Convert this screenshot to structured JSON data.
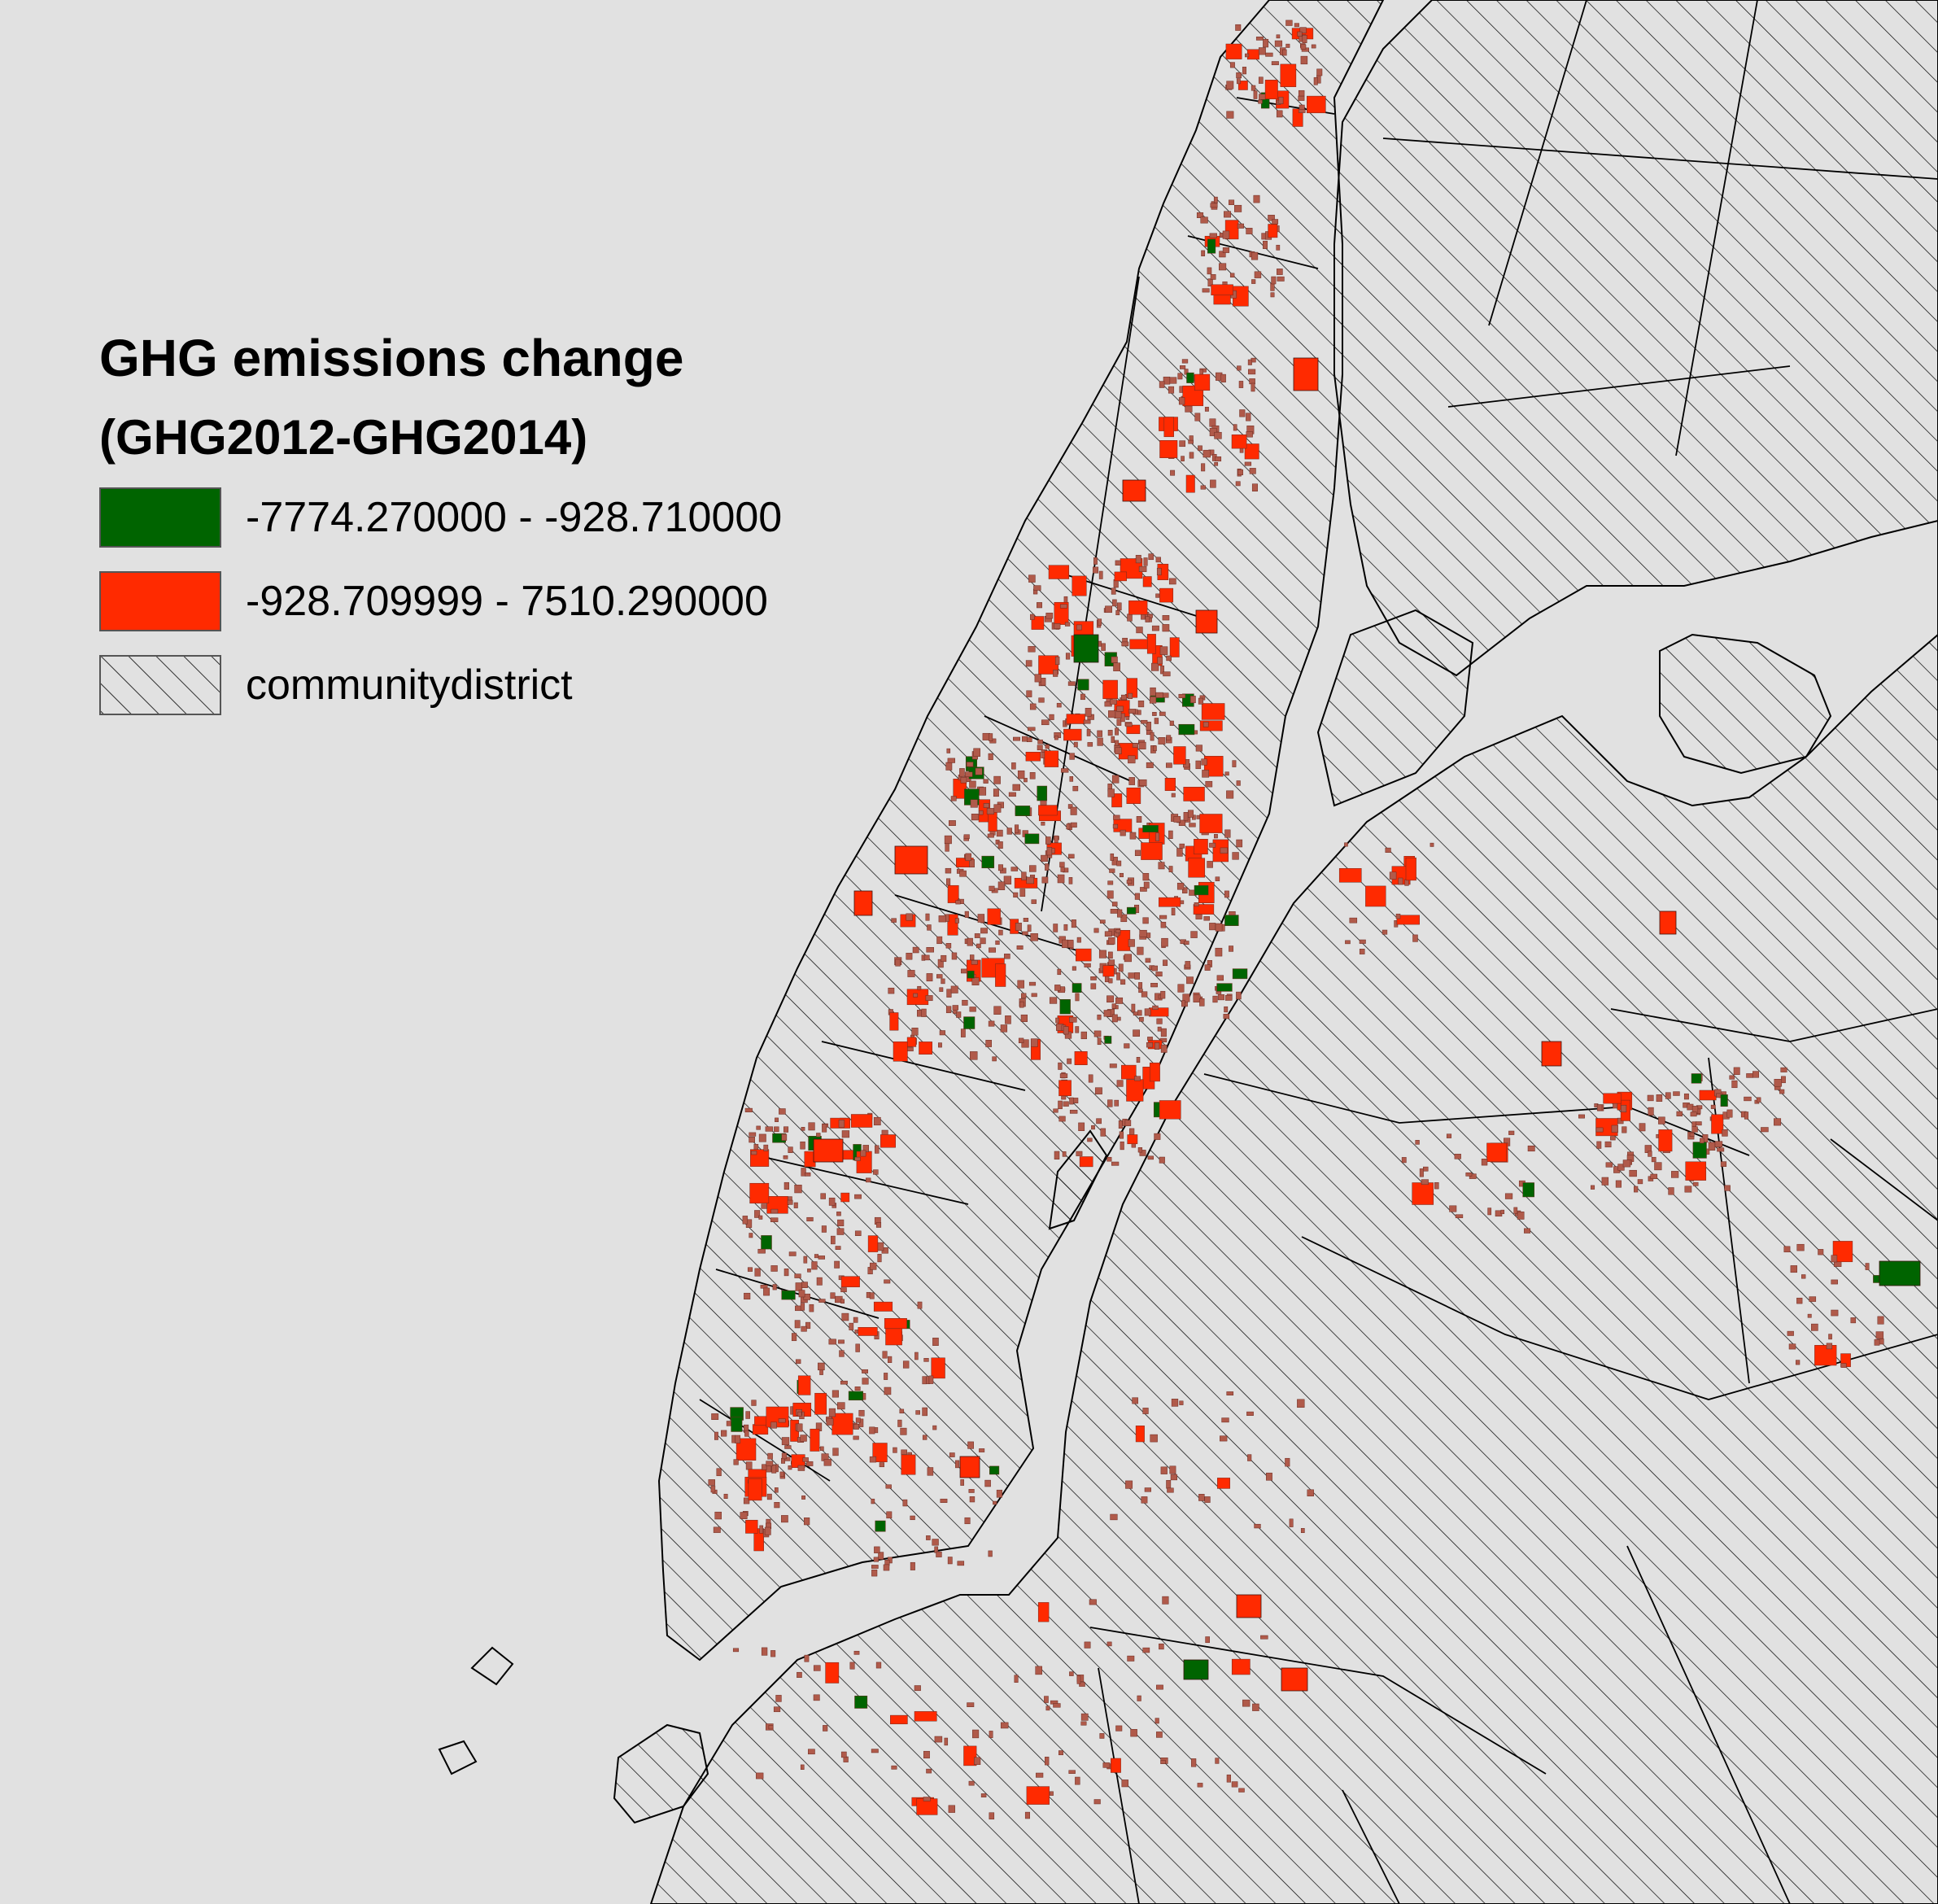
{
  "legend": {
    "title": "GHG emissions change",
    "subtitle": "(GHG2012-GHG2014)",
    "items": [
      {
        "label": "-7774.270000 - -928.710000",
        "symbol": "fill",
        "color": "#006400"
      },
      {
        "label": "-928.709999 - 7510.290000",
        "symbol": "fill",
        "color": "#ff2a00"
      },
      {
        "label": "communitydistrict",
        "symbol": "hatch",
        "color": "#000000"
      }
    ]
  },
  "colors": {
    "background": "#e1e1e1",
    "land_hatch": "#000000",
    "decrease_class": "#006400",
    "increase_class": "#ff2a00",
    "small_building": "#b05a4a"
  }
}
